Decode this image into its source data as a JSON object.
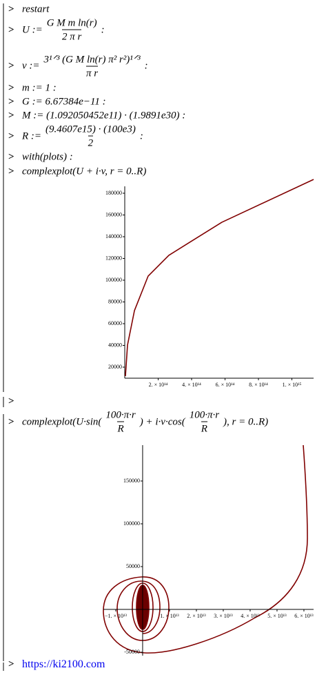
{
  "worksheet": {
    "commands": [
      {
        "input": "restart"
      },
      {
        "lhs": "U :=",
        "num": "G M m ln(r)",
        "den": "2 π r",
        "end": ":"
      },
      {
        "lhs": "v :=",
        "num": "3¹ᐟ³ (G M ln(r) π² r²)¹ᐟ³",
        "den": "π r",
        "end": ":"
      },
      {
        "input": "m := 1 :"
      },
      {
        "input": "G := 6.67384e−11 :"
      },
      {
        "input": "M := (1.092050452e11) · (1.9891e30) :"
      },
      {
        "lhs": "R :=",
        "num": "(9.4607e15) · (100e3)",
        "den": "2",
        "end": ":"
      },
      {
        "input": "with(plots) :"
      },
      {
        "input": "complexplot(U + i·v, r = 0..R)"
      },
      {
        "lhs": "complexplot(U·sin(",
        "num": "100·π·r",
        "den": "R",
        "mid": ") + i·v·cos(",
        "num2": "100·π·r",
        "den2": "R",
        "end": "), r = 0..R)"
      }
    ],
    "plots": [
      {
        "type": "line",
        "color": "#800000",
        "xlim": [
          0,
          1130000000000000.0
        ],
        "ylim": [
          9840,
          186350
        ],
        "xticks": [
          {
            "value": 200000000000000.0,
            "label": "2. × 10¹⁴"
          },
          {
            "value": 400000000000000.0,
            "label": "4. × 10¹⁴"
          },
          {
            "value": 600000000000000.0,
            "label": "6. × 10¹⁴"
          },
          {
            "value": 800000000000000.0,
            "label": "8. × 10¹⁴"
          },
          {
            "value": 1000000000000000.0,
            "label": "1. × 10¹⁵"
          }
        ],
        "yticks": [
          20000,
          40000,
          60000,
          80000,
          100000,
          120000,
          140000,
          160000,
          180000
        ],
        "x": [
          4100000000000.0,
          16500000000000.0,
          58000000000000.0,
          140000000000000.0,
          264000000000000.0,
          396000000000000.0,
          581000000000000.0,
          1130000000000000.0
        ],
        "y": [
          11750,
          40300,
          72000,
          103800,
          122900,
          135600,
          153300,
          192700
        ]
      },
      {
        "type": "line",
        "color": "#800000",
        "xlim": [
          -14600000000000.0,
          63600000000000.0
        ],
        "ylim": [
          -54000,
          191900
        ],
        "xticks": [
          {
            "value": -10000000000000.0,
            "label": "−1. × 10¹³"
          },
          {
            "value": 10000000000000.0,
            "label": "1. × 10¹³"
          },
          {
            "value": 20000000000000.0,
            "label": "2. × 10¹³"
          },
          {
            "value": 30000000000000.0,
            "label": "3. × 10¹³"
          },
          {
            "value": 40000000000000.0,
            "label": "4. × 10¹³"
          },
          {
            "value": 50000000000000.0,
            "label": "5. × 10¹³"
          },
          {
            "value": 60000000000000.0,
            "label": "6. × 10¹³"
          }
        ],
        "yticks": [
          -50000,
          50000,
          100000,
          150000
        ]
      }
    ],
    "link": "https://ki2100.com"
  }
}
